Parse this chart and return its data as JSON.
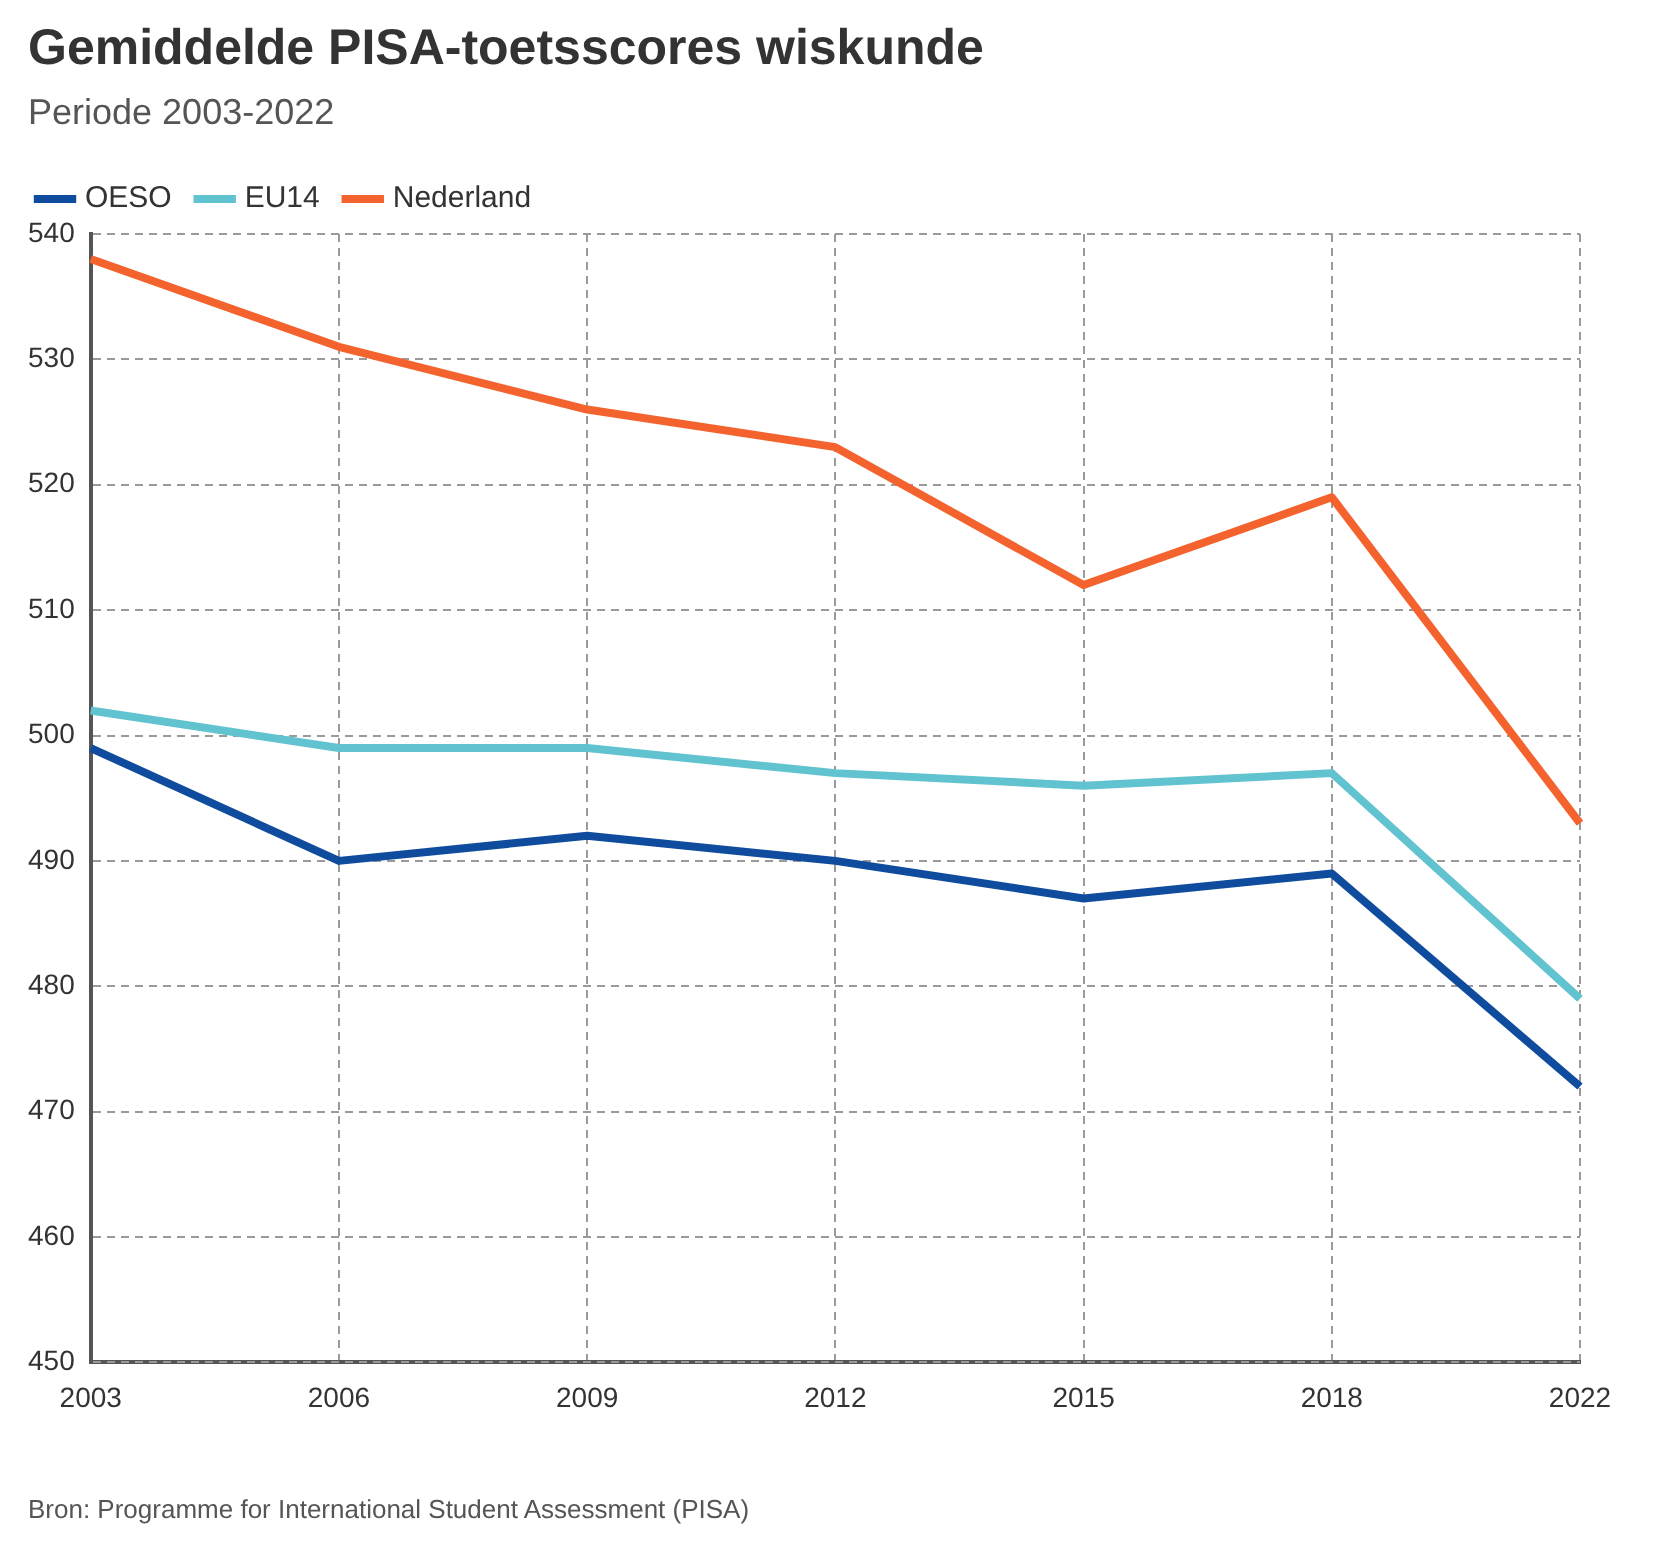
{
  "chart_data": {
    "type": "line",
    "title": "Gemiddelde PISA-toetsscores wiskunde",
    "subtitle": "Periode 2003-2022",
    "categories": [
      "2003",
      "2006",
      "2009",
      "2012",
      "2015",
      "2018",
      "2022"
    ],
    "series": [
      {
        "name": "OESO",
        "color": "#0f4c9e",
        "values": [
          499,
          490,
          492,
          490,
          487,
          489,
          472
        ]
      },
      {
        "name": "EU14",
        "color": "#62c3d0",
        "values": [
          502,
          499,
          499,
          497,
          496,
          497,
          479
        ]
      },
      {
        "name": "Nederland",
        "color": "#f4622e",
        "values": [
          538,
          531,
          526,
          523,
          512,
          519,
          493
        ]
      }
    ],
    "ylim": [
      450,
      540
    ],
    "yticks": [
      450,
      460,
      470,
      480,
      490,
      500,
      510,
      520,
      530,
      540
    ],
    "grid": true,
    "legend": "top left",
    "marker": "none",
    "line_style": "solid",
    "annotations": [
      "Bron: Programme for International Student Assessment (PISA)"
    ]
  }
}
